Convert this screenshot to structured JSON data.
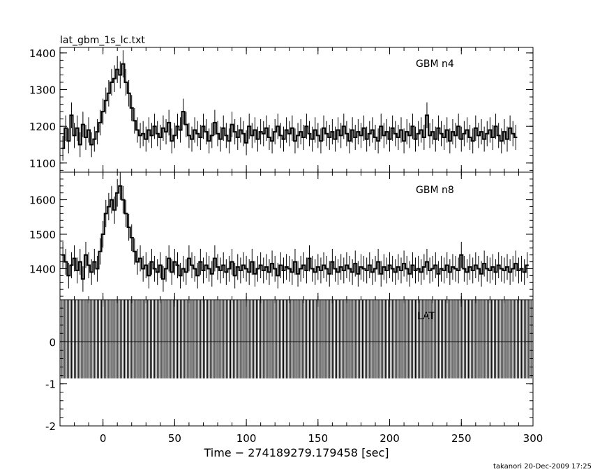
{
  "chart_data": [
    {
      "type": "line",
      "panel": "top",
      "title": "lat_gbm_1s_lc.txt",
      "series_label": "GBM n4",
      "xlim": [
        -30,
        300
      ],
      "ylim": [
        1075,
        1415
      ],
      "yticks_major": [
        1100,
        1200,
        1300,
        1400
      ],
      "x_shared": true,
      "series": [
        {
          "name": "GBM n4",
          "x_start": -28,
          "x_step": 2,
          "values": [
            1140,
            1195,
            1160,
            1230,
            1175,
            1195,
            1150,
            1205,
            1170,
            1190,
            1150,
            1165,
            1185,
            1210,
            1240,
            1270,
            1290,
            1320,
            1330,
            1355,
            1340,
            1370,
            1320,
            1290,
            1250,
            1215,
            1190,
            1175,
            1180,
            1165,
            1190,
            1175,
            1200,
            1180,
            1170,
            1195,
            1185,
            1210,
            1160,
            1175,
            1200,
            1190,
            1240,
            1205,
            1175,
            1165,
            1190,
            1180,
            1170,
            1200,
            1185,
            1160,
            1175,
            1210,
            1180,
            1165,
            1195,
            1175,
            1160,
            1205,
            1185,
            1170,
            1190,
            1180,
            1155,
            1200,
            1175,
            1190,
            1165,
            1185,
            1180,
            1195,
            1170,
            1160,
            1185,
            1200,
            1175,
            1165,
            1190,
            1180,
            1195,
            1160,
            1175,
            1185,
            1170,
            1200,
            1180,
            1165,
            1190,
            1175,
            1160,
            1195,
            1180,
            1170,
            1185,
            1165,
            1190,
            1175,
            1200,
            1180,
            1160,
            1190,
            1170,
            1185,
            1175,
            1195,
            1165,
            1180,
            1190,
            1170,
            1160,
            1200,
            1175,
            1185,
            1165,
            1195,
            1180,
            1170,
            1190,
            1160,
            1185,
            1175,
            1200,
            1165,
            1180,
            1190,
            1170,
            1230,
            1175,
            1185,
            1165,
            1195,
            1180,
            1170,
            1190,
            1160,
            1185,
            1175,
            1200,
            1165,
            1180,
            1190,
            1170,
            1160,
            1195,
            1175,
            1185,
            1165,
            1180,
            1190,
            1170,
            1200,
            1175,
            1160,
            1185,
            1165,
            1195,
            1180,
            1170
          ]
        }
      ]
    },
    {
      "type": "line",
      "panel": "middle",
      "series_label": "GBM n8",
      "xlim": [
        -30,
        300
      ],
      "ylim": [
        1310,
        1680
      ],
      "yticks_major": [
        1400,
        1500,
        1600
      ],
      "series": [
        {
          "name": "GBM n8",
          "x_start": -28,
          "x_step": 2,
          "values": [
            1440,
            1420,
            1380,
            1410,
            1430,
            1395,
            1420,
            1370,
            1440,
            1410,
            1390,
            1420,
            1400,
            1450,
            1500,
            1560,
            1580,
            1600,
            1570,
            1620,
            1640,
            1600,
            1560,
            1520,
            1490,
            1450,
            1420,
            1430,
            1400,
            1410,
            1380,
            1420,
            1400,
            1390,
            1410,
            1370,
            1400,
            1430,
            1390,
            1420,
            1410,
            1380,
            1400,
            1390,
            1430,
            1410,
            1400,
            1380,
            1420,
            1395,
            1410,
            1400,
            1385,
            1430,
            1405,
            1395,
            1410,
            1390,
            1400,
            1420,
            1380,
            1405,
            1395,
            1410,
            1400,
            1390,
            1420,
            1385,
            1400,
            1410,
            1395,
            1405,
            1390,
            1415,
            1400,
            1380,
            1410,
            1395,
            1405,
            1400,
            1390,
            1420,
            1385,
            1400,
            1410,
            1395,
            1430,
            1400,
            1390,
            1405,
            1395,
            1410,
            1400,
            1385,
            1420,
            1400,
            1390,
            1405,
            1395,
            1410,
            1400,
            1390,
            1415,
            1385,
            1405,
            1400,
            1395,
            1410,
            1390,
            1400,
            1420,
            1385,
            1405,
            1395,
            1410,
            1400,
            1390,
            1405,
            1395,
            1415,
            1400,
            1385,
            1410,
            1395,
            1400,
            1390,
            1405,
            1420,
            1395,
            1400,
            1410,
            1385,
            1400,
            1395,
            1410,
            1390,
            1405,
            1400,
            1395,
            1440,
            1400,
            1390,
            1405,
            1395,
            1410,
            1400,
            1385,
            1415,
            1400,
            1395,
            1405,
            1390,
            1410,
            1400,
            1395,
            1405,
            1390,
            1400,
            1415,
            1395,
            1400,
            1390,
            1410
          ]
        }
      ]
    },
    {
      "type": "bar",
      "panel": "bottom",
      "series_label": "LAT",
      "xlim": [
        -30,
        300
      ],
      "ylim": [
        -2,
        1
      ],
      "yticks_major": [
        -2,
        -1,
        0
      ],
      "series": [
        {
          "name": "LAT",
          "x_start": -29,
          "x_step": 1,
          "count": 330,
          "value": 0,
          "error_low": -0.87,
          "error_high": 1
        }
      ]
    }
  ],
  "xaxis": {
    "label": "Time − 274189279.179458 [sec]",
    "ticks": [
      0,
      50,
      100,
      150,
      200,
      250,
      300
    ]
  },
  "footer": {
    "stamp": "takanori 20-Dec-2009 17:25"
  }
}
